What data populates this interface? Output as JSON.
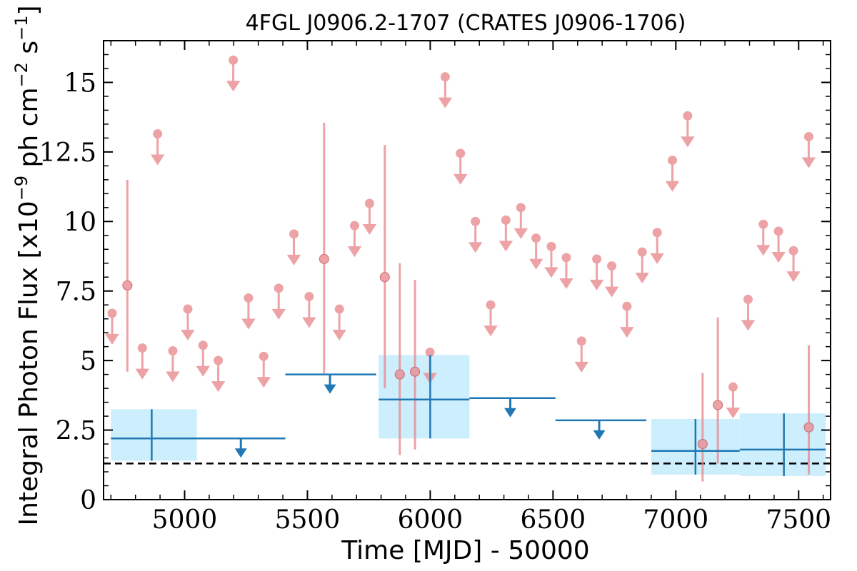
{
  "chart_data": {
    "type": "scatter",
    "title": "4FGL J0906.2-1707 (CRATES J0906-1706)",
    "xlabel": "Time [MJD] - 50000",
    "ylabel": "Integral Photon Flux [x10",
    "ylabel_exp": "−9",
    "ylabel_units": " ph cm",
    "ylabel_exp2": "−2",
    "ylabel_s": " s",
    "ylabel_exp3": "−1",
    "ylabel_close": "]",
    "xlim": [
      4670,
      7630
    ],
    "ylim": [
      0,
      16.5
    ],
    "xticks": [
      {
        "value": 5000,
        "label": "5000"
      },
      {
        "value": 5500,
        "label": "5500"
      },
      {
        "value": 6000,
        "label": "6000"
      },
      {
        "value": 6500,
        "label": "6500"
      },
      {
        "value": 7000,
        "label": "7000"
      },
      {
        "value": 7500,
        "label": "7500"
      }
    ],
    "yticks": [
      {
        "value": 0,
        "label": "0"
      },
      {
        "value": 2.5,
        "label": "2.5"
      },
      {
        "value": 5,
        "label": "5"
      },
      {
        "value": 7.5,
        "label": "7.5"
      },
      {
        "value": 10,
        "label": "10"
      },
      {
        "value": 12.5,
        "label": "12.5"
      },
      {
        "value": 15,
        "label": "15"
      }
    ],
    "grid": false,
    "baseline": 1.3,
    "colors": {
      "short_bins": "#e8898e",
      "long_bins": "#1f77b4",
      "band": "#cdeefc",
      "baseline": "#000000"
    },
    "series": [
      {
        "style": "short_bins_upper_limits",
        "points": [
          {
            "x": 4705,
            "y": 6.7
          },
          {
            "x": 4828,
            "y": 5.45
          },
          {
            "x": 4890,
            "y": 13.15
          },
          {
            "x": 4952,
            "y": 5.35
          },
          {
            "x": 5013,
            "y": 6.85
          },
          {
            "x": 5075,
            "y": 5.55
          },
          {
            "x": 5137,
            "y": 5.0
          },
          {
            "x": 5198,
            "y": 15.8
          },
          {
            "x": 5260,
            "y": 7.25
          },
          {
            "x": 5322,
            "y": 5.15
          },
          {
            "x": 5383,
            "y": 7.6
          },
          {
            "x": 5445,
            "y": 9.55
          },
          {
            "x": 5507,
            "y": 7.3
          },
          {
            "x": 5630,
            "y": 6.85
          },
          {
            "x": 5692,
            "y": 9.85
          },
          {
            "x": 5753,
            "y": 10.65
          },
          {
            "x": 5999,
            "y": 5.3
          },
          {
            "x": 6061,
            "y": 15.2
          },
          {
            "x": 6123,
            "y": 12.45
          },
          {
            "x": 6184,
            "y": 10.0
          },
          {
            "x": 6246,
            "y": 7.0
          },
          {
            "x": 6308,
            "y": 10.05
          },
          {
            "x": 6369,
            "y": 10.5
          },
          {
            "x": 6431,
            "y": 9.4
          },
          {
            "x": 6493,
            "y": 9.1
          },
          {
            "x": 6554,
            "y": 8.7
          },
          {
            "x": 6616,
            "y": 5.7
          },
          {
            "x": 6678,
            "y": 8.65
          },
          {
            "x": 6739,
            "y": 8.4
          },
          {
            "x": 6801,
            "y": 6.95
          },
          {
            "x": 6863,
            "y": 8.9
          },
          {
            "x": 6924,
            "y": 9.6
          },
          {
            "x": 6986,
            "y": 12.2
          },
          {
            "x": 7048,
            "y": 13.8
          },
          {
            "x": 7233,
            "y": 4.05
          },
          {
            "x": 7294,
            "y": 7.2
          },
          {
            "x": 7356,
            "y": 9.9
          },
          {
            "x": 7418,
            "y": 9.65
          },
          {
            "x": 7479,
            "y": 8.95
          },
          {
            "x": 7541,
            "y": 13.05
          }
        ]
      },
      {
        "style": "short_bins_detections",
        "points": [
          {
            "x": 4767,
            "y": 7.7,
            "ylo": 4.6,
            "yhi": 11.5
          },
          {
            "x": 5568,
            "y": 8.65,
            "ylo": 4.55,
            "yhi": 13.55
          },
          {
            "x": 5815,
            "y": 8.0,
            "ylo": 4.0,
            "yhi": 12.75
          },
          {
            "x": 5876,
            "y": 4.5,
            "ylo": 1.6,
            "yhi": 8.5
          },
          {
            "x": 5938,
            "y": 4.6,
            "ylo": 1.8,
            "yhi": 7.9
          },
          {
            "x": 7109,
            "y": 2.0,
            "ylo": 0.65,
            "yhi": 4.55
          },
          {
            "x": 7171,
            "y": 3.4,
            "ylo": 1.3,
            "yhi": 6.55
          },
          {
            "x": 7541.5,
            "y": 2.6,
            "ylo": 0.9,
            "yhi": 5.55
          }
        ]
      },
      {
        "style": "long_bins_detections",
        "points": [
          {
            "x": 4866,
            "xlo": 4700,
            "xhi": 5050,
            "y": 2.2,
            "ylo": 1.4,
            "yhi": 3.25
          },
          {
            "x": 6000,
            "xlo": 5790,
            "xhi": 6160,
            "y": 3.6,
            "ylo": 2.2,
            "yhi": 5.2
          },
          {
            "x": 7080,
            "xlo": 6900,
            "xhi": 7260,
            "y": 1.75,
            "ylo": 0.9,
            "yhi": 2.9
          },
          {
            "x": 7440,
            "xlo": 7260,
            "xhi": 7610,
            "y": 1.8,
            "ylo": 0.85,
            "yhi": 3.1
          }
        ]
      },
      {
        "style": "long_bins_upper_limits",
        "points": [
          {
            "x": 5229,
            "xlo": 5050,
            "xhi": 5410,
            "y": 2.2
          },
          {
            "x": 5592,
            "xlo": 5410,
            "xhi": 5780,
            "y": 4.5
          },
          {
            "x": 6326,
            "xlo": 6160,
            "xhi": 6510,
            "y": 3.65
          },
          {
            "x": 6688,
            "xlo": 6510,
            "xhi": 6880,
            "y": 2.85
          }
        ]
      }
    ]
  }
}
